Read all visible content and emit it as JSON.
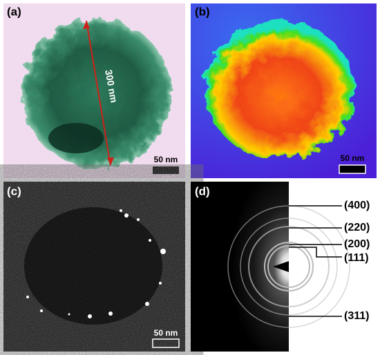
{
  "panels": [
    {
      "label": "(a)",
      "scale_bar": "50 nm",
      "annotation": "300 nm"
    },
    {
      "label": "(b)",
      "scale_bar": "50 nm"
    },
    {
      "label": "(c)",
      "scale_bar": "50 nm"
    },
    {
      "label": "(d)",
      "rings": [
        "(400)",
        "(220)",
        "(200)",
        "(111)",
        "(311)"
      ]
    }
  ]
}
